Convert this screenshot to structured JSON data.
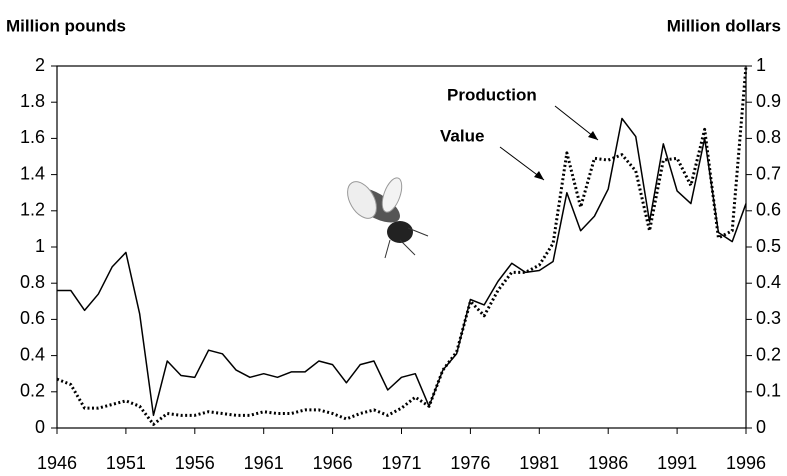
{
  "chart_data": {
    "type": "line",
    "ylabel": "Million pounds",
    "y2label": "Million dollars",
    "x": [
      1946,
      1947,
      1948,
      1949,
      1950,
      1951,
      1952,
      1953,
      1954,
      1955,
      1956,
      1957,
      1958,
      1959,
      1960,
      1961,
      1962,
      1963,
      1964,
      1965,
      1966,
      1967,
      1968,
      1969,
      1970,
      1971,
      1972,
      1973,
      1974,
      1975,
      1976,
      1977,
      1978,
      1979,
      1980,
      1981,
      1982,
      1983,
      1984,
      1985,
      1986,
      1987,
      1988,
      1989,
      1990,
      1991,
      1992,
      1993,
      1994,
      1995,
      1996
    ],
    "series": [
      {
        "name": "Production",
        "color": "#000000",
        "dash": "solid",
        "values": [
          0.76,
          0.76,
          0.65,
          0.74,
          0.89,
          0.97,
          0.63,
          0.07,
          0.37,
          0.29,
          0.28,
          0.43,
          0.41,
          0.32,
          0.28,
          0.3,
          0.28,
          0.31,
          0.31,
          0.37,
          0.35,
          0.25,
          0.35,
          0.37,
          0.21,
          0.28,
          0.3,
          0.12,
          0.32,
          0.41,
          0.71,
          0.68,
          0.81,
          0.91,
          0.86,
          0.87,
          0.92,
          1.3,
          1.09,
          1.17,
          1.32,
          1.71,
          1.61,
          1.14,
          1.57,
          1.31,
          1.24,
          1.6,
          1.08,
          1.03,
          1.24
        ]
      },
      {
        "name": "Value",
        "color": "#000000",
        "dash": "dotted",
        "axis": "y2",
        "values": [
          0.135,
          0.12,
          0.055,
          0.055,
          0.065,
          0.075,
          0.06,
          0.01,
          0.04,
          0.035,
          0.035,
          0.045,
          0.04,
          0.035,
          0.035,
          0.045,
          0.04,
          0.04,
          0.05,
          0.05,
          0.04,
          0.025,
          0.04,
          0.05,
          0.035,
          0.055,
          0.085,
          0.06,
          0.16,
          0.21,
          0.35,
          0.31,
          0.38,
          0.43,
          0.43,
          0.45,
          0.51,
          0.76,
          0.61,
          0.745,
          0.74,
          0.755,
          0.71,
          0.545,
          0.74,
          0.745,
          0.67,
          0.825,
          0.525,
          0.545,
          1.0
        ]
      }
    ],
    "xlim": [
      1946,
      1996
    ],
    "xticks": [
      1946,
      1951,
      1956,
      1961,
      1966,
      1971,
      1976,
      1981,
      1986,
      1991,
      1996
    ],
    "ylim": [
      0,
      2
    ],
    "yticks": [
      0,
      0.2,
      0.4,
      0.6,
      0.8,
      1,
      1.2,
      1.4,
      1.6,
      1.8,
      2
    ],
    "y2lim": [
      0,
      1
    ],
    "y2ticks": [
      0,
      0.1,
      0.2,
      0.3,
      0.4,
      0.5,
      0.6,
      0.7,
      0.8,
      0.9,
      1
    ]
  }
}
